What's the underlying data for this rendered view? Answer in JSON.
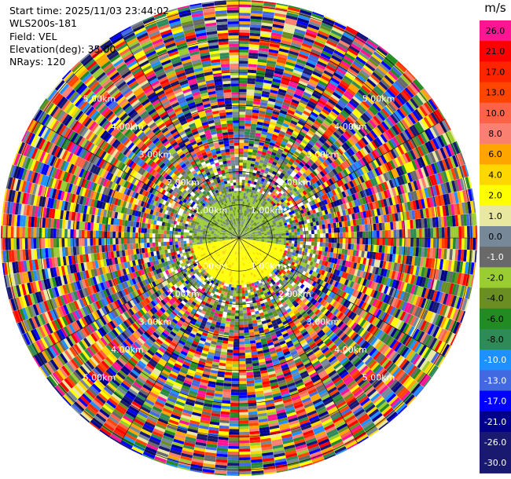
{
  "header": {
    "start_time": "Start time: 2025/11/03 23:44:02",
    "instrument": "WLS200s-181",
    "field": "Field: VEL",
    "elevation": "Elevation(deg): 35.00",
    "nrays": "NRays: 120"
  },
  "range_rings": {
    "labels": [
      "1.00km",
      "2.00km",
      "3.00km",
      "4.00km",
      "5.00km"
    ]
  },
  "colorbar": {
    "unit": "m/s",
    "bins": [
      {
        "label": "26.0",
        "color": "#ff1493"
      },
      {
        "label": "21.0",
        "color": "#ff0000"
      },
      {
        "label": "17.0",
        "color": "#ff2400"
      },
      {
        "label": "13.0",
        "color": "#ff4500"
      },
      {
        "label": "10.0",
        "color": "#ff6347"
      },
      {
        "label": "8.0",
        "color": "#fa8072"
      },
      {
        "label": "6.0",
        "color": "#ffa500"
      },
      {
        "label": "4.0",
        "color": "#ffd700"
      },
      {
        "label": "2.0",
        "color": "#ffff00"
      },
      {
        "label": "1.0",
        "color": "#e8e8a0"
      },
      {
        "label": "0.0",
        "color": "#778899"
      },
      {
        "label": "-1.0",
        "color": "#696969"
      },
      {
        "label": "-2.0",
        "color": "#9acd32"
      },
      {
        "label": "-4.0",
        "color": "#6b8e23"
      },
      {
        "label": "-6.0",
        "color": "#228b22"
      },
      {
        "label": "-8.0",
        "color": "#2e8b57"
      },
      {
        "label": "-10.0",
        "color": "#1e90ff"
      },
      {
        "label": "-13.0",
        "color": "#4169e1"
      },
      {
        "label": "-17.0",
        "color": "#0000ff"
      },
      {
        "label": "-21.0",
        "color": "#00008b"
      },
      {
        "label": "-26.0",
        "color": "#191970"
      },
      {
        "label": "-30.0",
        "color": "#191970"
      }
    ]
  }
}
